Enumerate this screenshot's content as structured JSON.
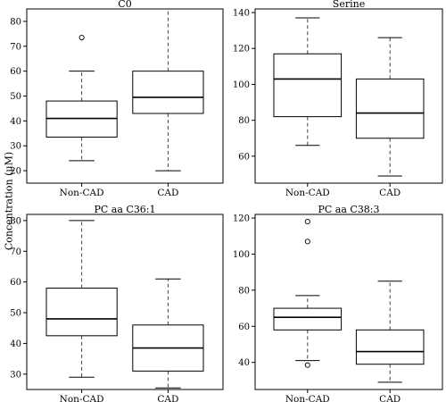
{
  "figure": {
    "ylabel": "Concentration (μM)"
  },
  "chart_data": [
    {
      "type": "box",
      "title": "C0",
      "categories": [
        "Non-CAD",
        "CAD"
      ],
      "yticks": [
        20,
        30,
        40,
        50,
        60,
        70,
        80
      ],
      "ylim": [
        15,
        85
      ],
      "boxes": [
        {
          "label": "Non-CAD",
          "whisker_low": 24,
          "q1": 33.5,
          "median": 41,
          "q3": 48,
          "whisker_high": 60,
          "outliers": [
            73.5
          ]
        },
        {
          "label": "CAD",
          "whisker_low": 20,
          "q1": 43,
          "median": 49.5,
          "q3": 60,
          "whisker_high": 85,
          "outliers": []
        }
      ]
    },
    {
      "type": "box",
      "title": "Serine",
      "categories": [
        "Non-CAD",
        "CAD"
      ],
      "yticks": [
        60,
        80,
        100,
        120,
        140
      ],
      "ylim": [
        45,
        142
      ],
      "boxes": [
        {
          "label": "Non-CAD",
          "whisker_low": 66,
          "q1": 82,
          "median": 103,
          "q3": 117,
          "whisker_high": 137,
          "outliers": []
        },
        {
          "label": "CAD",
          "whisker_low": 49,
          "q1": 70,
          "median": 84,
          "q3": 103,
          "whisker_high": 126,
          "outliers": []
        }
      ]
    },
    {
      "type": "box",
      "title": "PC aa C36:1",
      "categories": [
        "Non-CAD",
        "CAD"
      ],
      "yticks": [
        30,
        40,
        50,
        60,
        70,
        80
      ],
      "ylim": [
        25,
        82
      ],
      "boxes": [
        {
          "label": "Non-CAD",
          "whisker_low": 29,
          "q1": 42.5,
          "median": 48,
          "q3": 58,
          "whisker_high": 80,
          "outliers": []
        },
        {
          "label": "CAD",
          "whisker_low": 25.5,
          "q1": 31,
          "median": 38.5,
          "q3": 46,
          "whisker_high": 61,
          "outliers": []
        }
      ]
    },
    {
      "type": "box",
      "title": "PC aa C38:3",
      "categories": [
        "Non-CAD",
        "CAD"
      ],
      "yticks": [
        40,
        60,
        80,
        100,
        120
      ],
      "ylim": [
        25,
        122
      ],
      "boxes": [
        {
          "label": "Non-CAD",
          "whisker_low": 41,
          "q1": 58,
          "median": 65,
          "q3": 70,
          "whisker_high": 77,
          "outliers": [
            118,
            107,
            38.5
          ]
        },
        {
          "label": "CAD",
          "whisker_low": 29,
          "q1": 39,
          "median": 46,
          "q3": 58,
          "whisker_high": 85,
          "outliers": []
        }
      ]
    }
  ]
}
